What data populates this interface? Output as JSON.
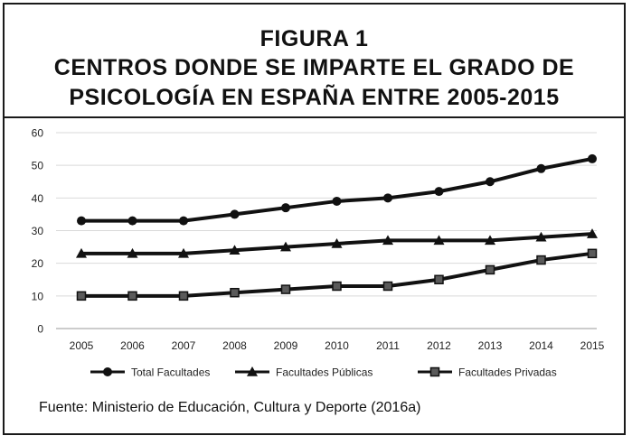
{
  "figure": {
    "title_line1": "FIGURA 1",
    "title_line2": "CENTROS DONDE SE IMPARTE EL GRADO DE",
    "title_line3": "PSICOLOGÍA EN ESPAÑA ENTRE 2005-2015",
    "source": "Fuente: Ministerio de Educación, Cultura y Deporte (2016a)"
  },
  "chart_data": {
    "type": "line",
    "title": "",
    "xlabel": "",
    "ylabel": "",
    "categories": [
      "2005",
      "2006",
      "2007",
      "2008",
      "2009",
      "2010",
      "2011",
      "2012",
      "2013",
      "2014",
      "2015"
    ],
    "ylim": [
      0,
      60
    ],
    "yticks": [
      "0",
      "10",
      "20",
      "30",
      "40",
      "50",
      "60"
    ],
    "grid": true,
    "legend_position": "bottom",
    "series": [
      {
        "name": "Total Facultades",
        "marker": "circle",
        "color": "#111111",
        "values": [
          33,
          33,
          33,
          35,
          37,
          39,
          40,
          42,
          45,
          49,
          52
        ]
      },
      {
        "name": "Facultades Públicas",
        "marker": "triangle",
        "color": "#111111",
        "values": [
          23,
          23,
          23,
          24,
          25,
          26,
          27,
          27,
          27,
          28,
          29
        ]
      },
      {
        "name": "Facultades Privadas",
        "marker": "square",
        "color": "#111111",
        "values": [
          10,
          10,
          10,
          11,
          12,
          13,
          13,
          15,
          18,
          21,
          23
        ]
      }
    ]
  }
}
